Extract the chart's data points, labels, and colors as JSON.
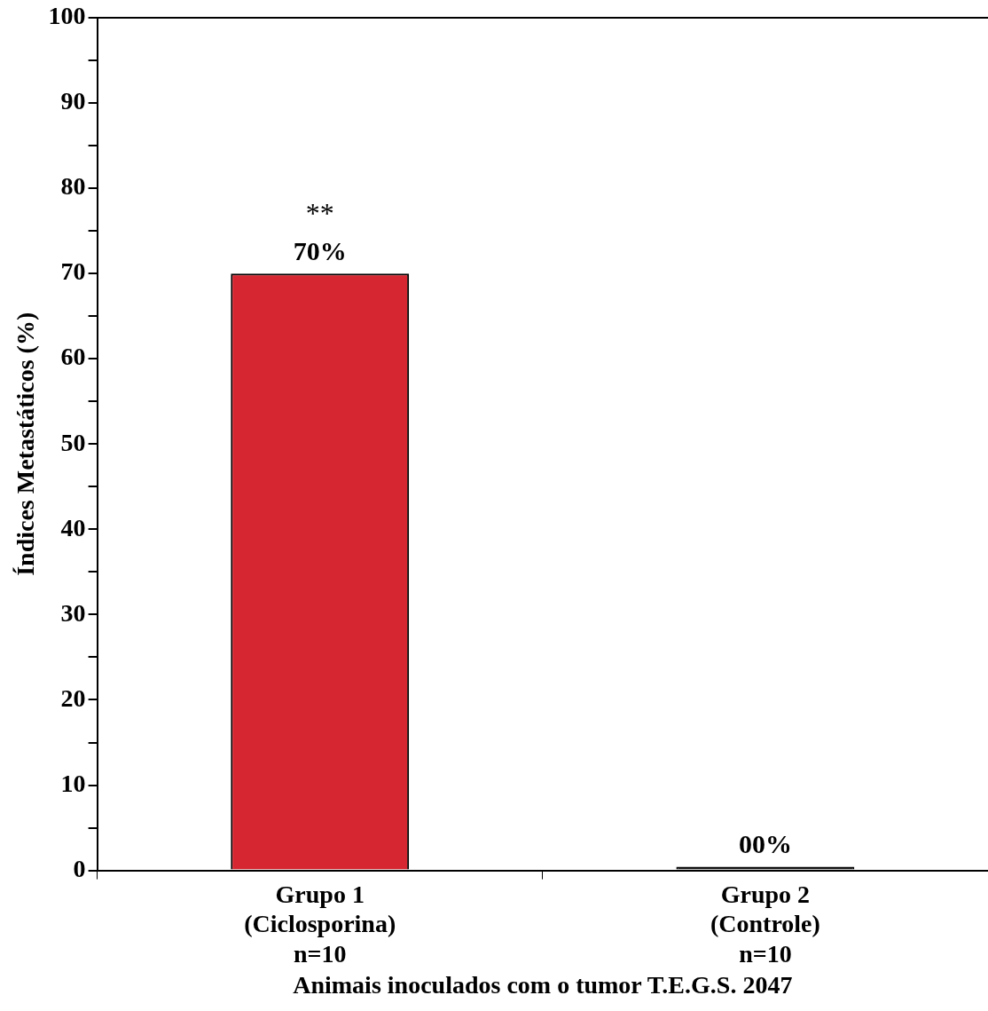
{
  "chart_data": {
    "type": "bar",
    "categories": [
      "Grupo 1\n(Ciclosporina)\nn=10",
      "Grupo 2\n(Controle)\nn=10"
    ],
    "values": [
      70,
      0
    ],
    "value_labels": [
      "70%",
      "00%"
    ],
    "colors": [
      "#d62631",
      "#222222"
    ],
    "xlabel": "Animais inoculados com o tumor T.E.G.S. 2047",
    "ylabel": "Índices Metastáticos (%)",
    "ylim": [
      0,
      100
    ],
    "yticks": [
      0,
      {
        "value": 5,
        "label": null
      },
      10,
      {
        "value": 15,
        "label": null
      },
      20,
      {
        "value": 25,
        "label": null
      },
      30,
      {
        "value": 35,
        "label": null
      },
      40,
      {
        "value": 45,
        "label": null
      },
      50,
      {
        "value": 55,
        "label": null
      },
      60,
      {
        "value": 65,
        "label": null
      },
      70,
      {
        "value": 75,
        "label": null
      },
      80,
      {
        "value": 85,
        "label": null
      },
      90,
      {
        "value": 95,
        "label": null
      },
      100
    ],
    "annotations": [
      "**"
    ],
    "grid": false,
    "legend": false
  }
}
